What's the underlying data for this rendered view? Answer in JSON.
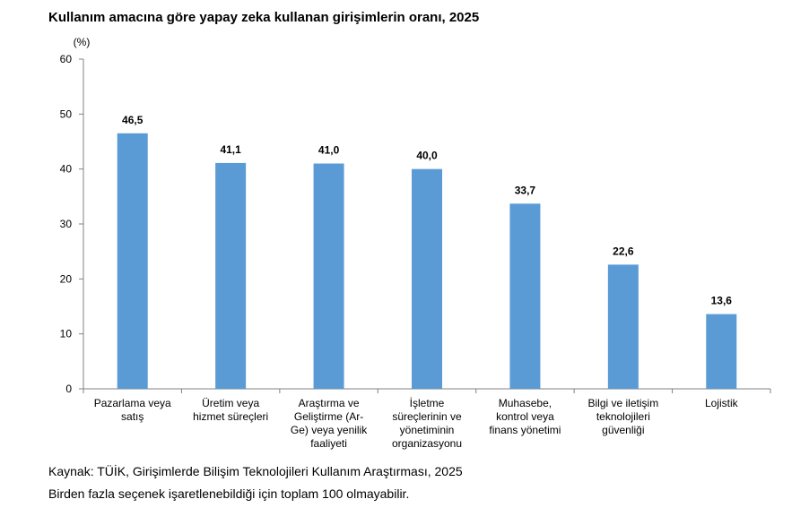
{
  "title": "Kullanım amacına göre yapay zeka kullanan girişimlerin oranı, 2025",
  "chart_data": {
    "type": "bar",
    "title": "Kullanım amacına göre yapay zeka kullanan girişimlerin oranı, 2025",
    "unit_label": "(%)",
    "xlabel": "",
    "ylabel": "",
    "ylim": [
      0,
      60
    ],
    "yticks": [
      0,
      10,
      20,
      30,
      40,
      50,
      60
    ],
    "grid": false,
    "bar_color": "#5b9bd5",
    "categories": [
      [
        "Pazarlama veya",
        "satış"
      ],
      [
        "Üretim veya",
        "hizmet süreçleri"
      ],
      [
        "Araştırma ve",
        "Geliştirme (Ar-",
        "Ge) veya yenilik",
        "faaliyeti"
      ],
      [
        "İşletme",
        "süreçlerinin ve",
        "yönetiminin",
        "organizasyonu"
      ],
      [
        "Muhasebe,",
        "kontrol veya",
        "finans yönetimi"
      ],
      [
        "Bilgi ve iletişim",
        "teknolojileri",
        "güvenliği"
      ],
      [
        "Lojistik"
      ]
    ],
    "values": [
      46.5,
      41.1,
      41.0,
      40.0,
      33.7,
      22.6,
      13.6
    ],
    "value_labels": [
      "46,5",
      "41,1",
      "41,0",
      "40,0",
      "33,7",
      "22,6",
      "13,6"
    ]
  },
  "footer": {
    "source": "Kaynak: TÜİK, Girişimlerde Bilişim Teknolojileri Kullanım Araştırması, 2025",
    "note": "Birden fazla seçenek işaretlenebildiği için toplam 100 olmayabilir."
  }
}
